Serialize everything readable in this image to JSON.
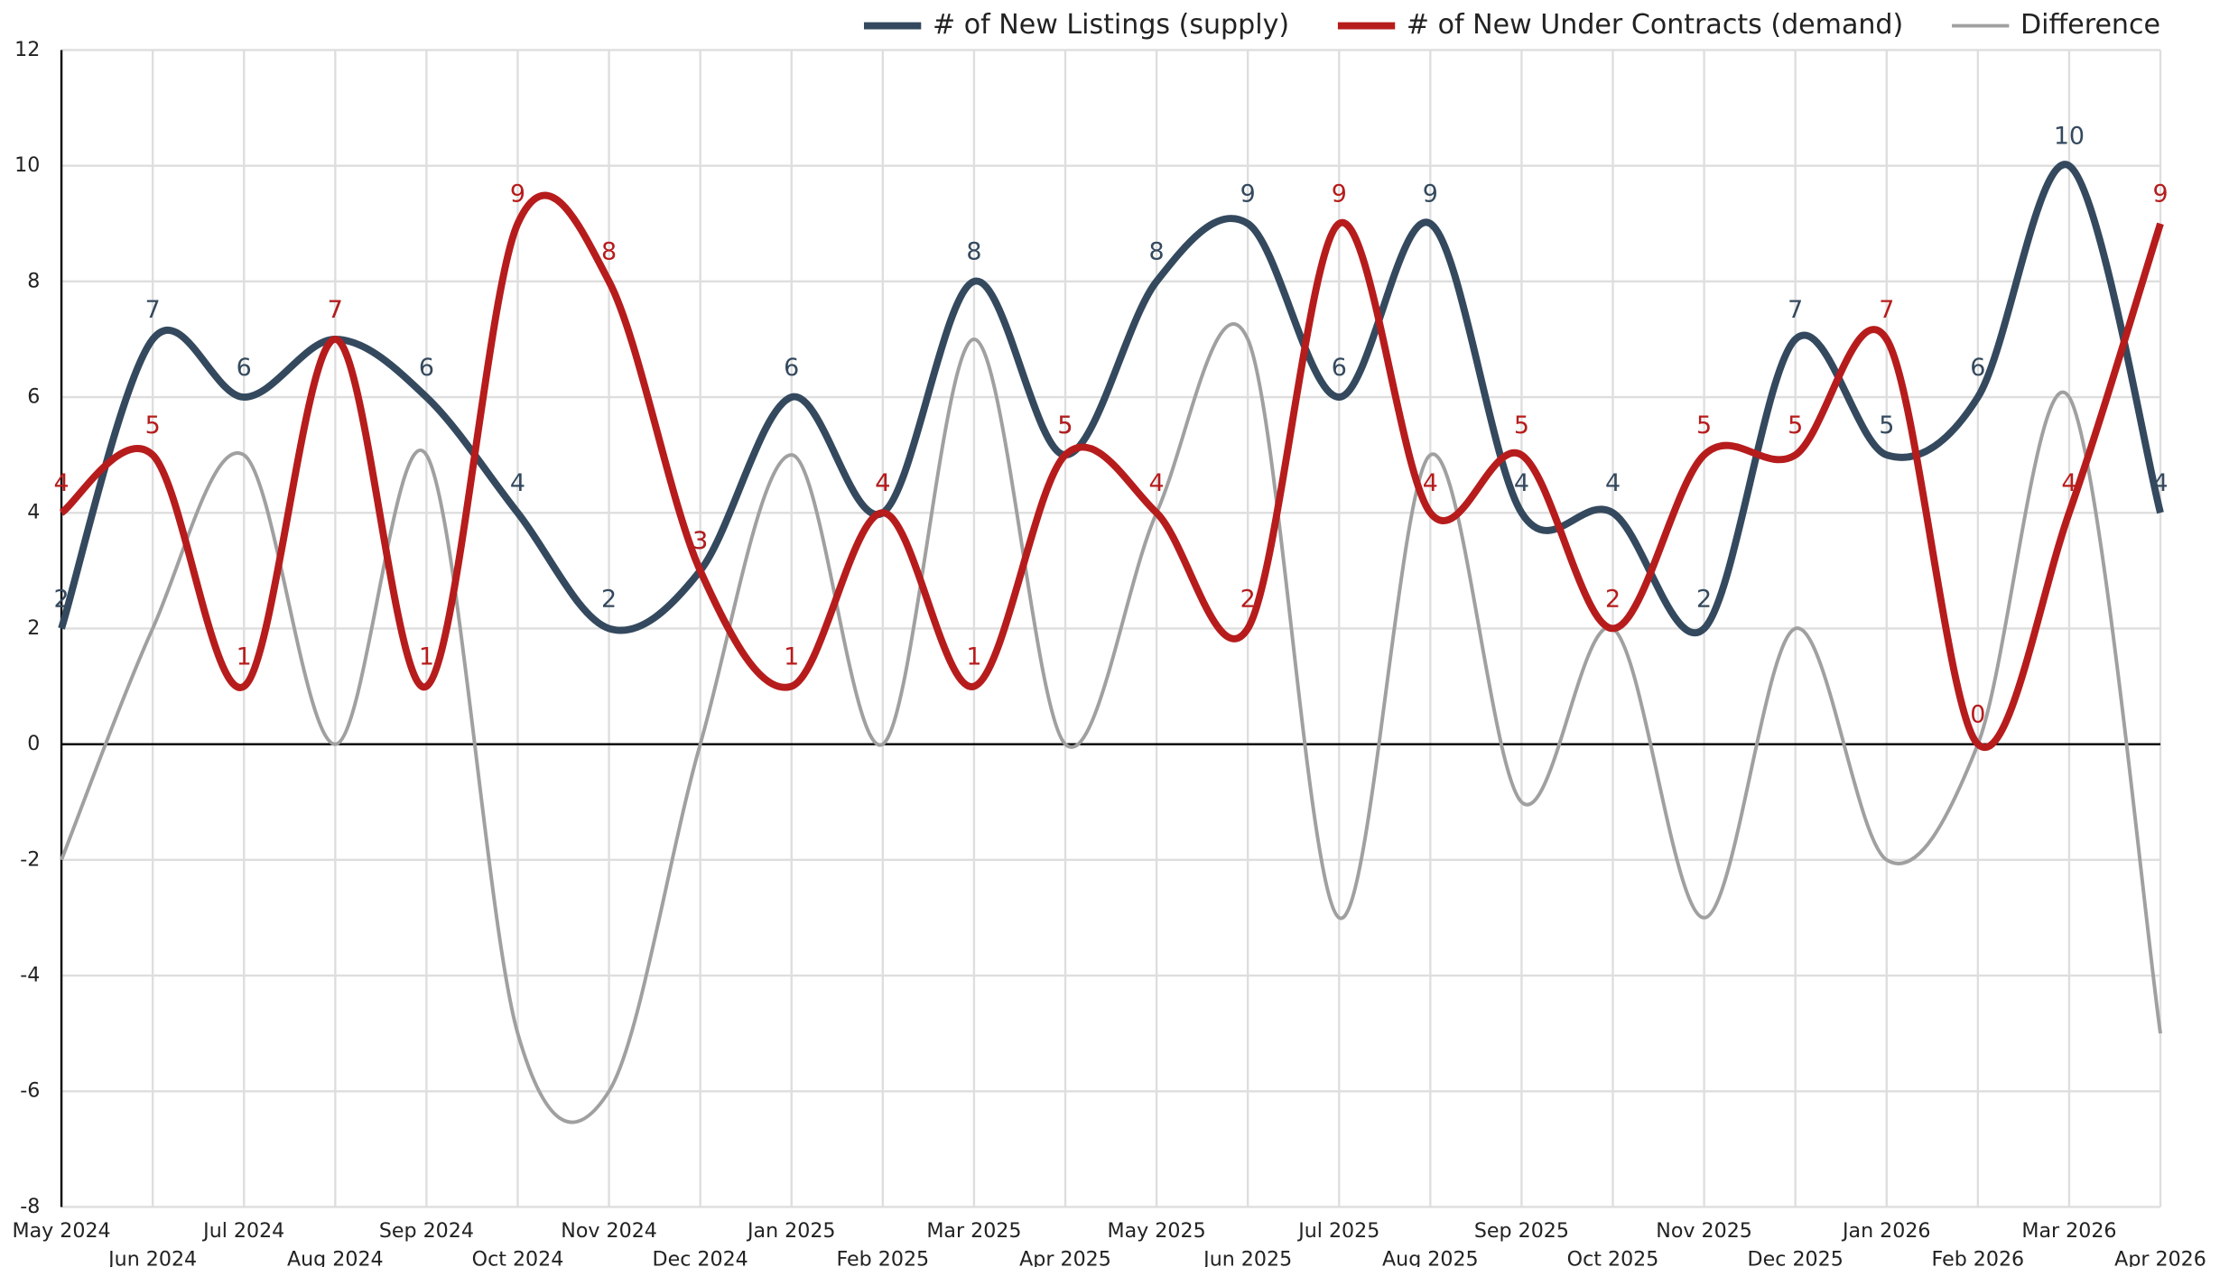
{
  "chart_data": {
    "type": "line",
    "categories": [
      "May 2024",
      "Jun 2024",
      "Jul 2024",
      "Aug 2024",
      "Sep 2024",
      "Oct 2024",
      "Nov 2024",
      "Dec 2024",
      "Jan 2025",
      "Feb 2025",
      "Mar 2025",
      "Apr 2025",
      "May 2025",
      "Jun 2025",
      "Jul 2025",
      "Aug 2025",
      "Sep 2025",
      "Oct 2025",
      "Nov 2025",
      "Dec 2025",
      "Jan 2026",
      "Feb 2026",
      "Mar 2026",
      "Apr 2026"
    ],
    "series": [
      {
        "name": "# of New Listings (supply)",
        "color": "#34495e",
        "labels": true,
        "values": [
          2,
          7,
          6,
          7,
          6,
          4,
          2,
          3,
          6,
          4,
          8,
          5,
          8,
          9,
          6,
          9,
          4,
          4,
          2,
          7,
          5,
          6,
          10,
          4
        ]
      },
      {
        "name": "# of New Under Contracts (demand)",
        "color": "#b71c1c",
        "labels": true,
        "values": [
          4,
          5,
          1,
          7,
          1,
          9,
          8,
          3,
          1,
          4,
          1,
          5,
          4,
          2,
          9,
          4,
          5,
          2,
          5,
          5,
          7,
          0,
          4,
          9
        ]
      },
      {
        "name": "Difference",
        "color": "#a0a0a0",
        "labels": false,
        "values": [
          -2,
          2,
          5,
          0,
          5,
          -5,
          -6,
          0,
          5,
          0,
          7,
          0,
          4,
          7,
          -3,
          5,
          -1,
          2,
          -3,
          2,
          -2,
          0,
          6,
          -5
        ]
      }
    ],
    "ylim": [
      -8,
      12
    ],
    "yticks": [
      -8,
      -6,
      -4,
      -2,
      0,
      2,
      4,
      6,
      8,
      10,
      12
    ],
    "grid": true,
    "legend": "top-right"
  }
}
